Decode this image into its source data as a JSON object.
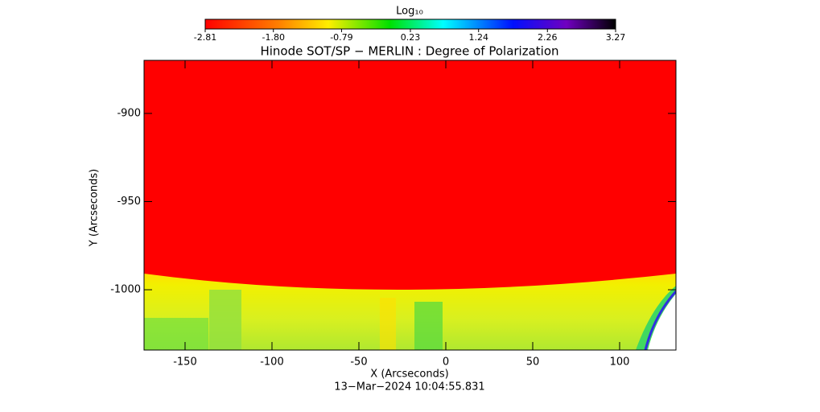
{
  "chart_data": {
    "type": "image",
    "title": "Hinode SOT/SP − MERLIN : Degree of Polarization",
    "x_label": "X (Arcseconds)",
    "y_label": "Y (Arcseconds)",
    "timestamp": "13−Mar−2024 10:04:55.831",
    "colorbar_label": "Log₁₀",
    "colorbar_range": [
      -2.81,
      3.27
    ],
    "colorbar_ticks": [
      -2.81,
      -1.8,
      -0.79,
      0.23,
      1.24,
      2.26,
      3.27
    ],
    "xlim": [
      -173.6,
      132.4
    ],
    "xticks": [
      -150,
      -100,
      -50,
      0,
      50,
      100
    ],
    "ylim": [
      -1034.2,
      -869.9
    ],
    "yticks": [
      -1000,
      -950,
      -900
    ]
  }
}
